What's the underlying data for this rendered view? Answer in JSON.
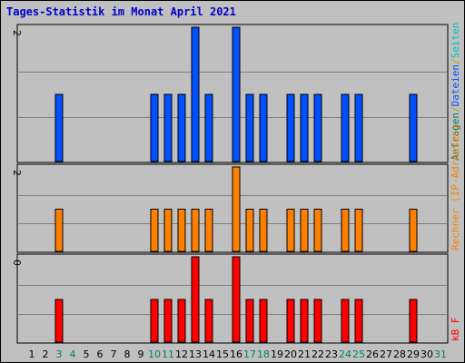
{
  "title": "Tages-Statistik im Monat April 2021",
  "colors": {
    "title": "#0000cc",
    "grid": "#808080",
    "frame": "#000000",
    "day_normal": "#000000",
    "day_weekend": "#008060"
  },
  "chart_data": [
    {
      "type": "bar",
      "panel": "top",
      "categories": [
        "1",
        "2",
        "3",
        "4",
        "5",
        "6",
        "7",
        "8",
        "9",
        "10",
        "11",
        "12",
        "13",
        "14",
        "15",
        "16",
        "17",
        "18",
        "19",
        "20",
        "21",
        "22",
        "23",
        "24",
        "25",
        "26",
        "27",
        "28",
        "29",
        "30",
        "31"
      ],
      "ylim": [
        0,
        2
      ],
      "ymax_label": "2",
      "color": "#0050ff",
      "legend": [
        {
          "text": "Anfragen",
          "color": "#008060"
        },
        {
          "text": "/",
          "color": "#c0a000"
        },
        {
          "text": "Dateien",
          "color": "#0050ff"
        },
        {
          "text": "/",
          "color": "#c0a000"
        },
        {
          "text": "Seiten",
          "color": "#00c0c0"
        }
      ],
      "values": [
        0,
        0,
        1,
        0,
        0,
        0,
        0,
        0,
        0,
        1,
        1,
        1,
        2,
        1,
        0,
        2,
        1,
        1,
        0,
        1,
        1,
        1,
        0,
        1,
        1,
        0,
        0,
        0,
        1,
        0,
        0
      ]
    },
    {
      "type": "bar",
      "panel": "middle",
      "categories": [
        "1",
        "2",
        "3",
        "4",
        "5",
        "6",
        "7",
        "8",
        "9",
        "10",
        "11",
        "12",
        "13",
        "14",
        "15",
        "16",
        "17",
        "18",
        "19",
        "20",
        "21",
        "22",
        "23",
        "24",
        "25",
        "26",
        "27",
        "28",
        "29",
        "30",
        "31"
      ],
      "ylim": [
        0,
        2
      ],
      "ymax_label": "2",
      "color": "#ff8000",
      "legend": [
        {
          "text": "Rechner (IP-Adressen)",
          "color": "#ff8000"
        }
      ],
      "values": [
        0,
        0,
        1,
        0,
        0,
        0,
        0,
        0,
        0,
        1,
        1,
        1,
        1,
        1,
        0,
        2,
        1,
        1,
        0,
        1,
        1,
        1,
        0,
        1,
        1,
        0,
        0,
        0,
        1,
        0,
        0
      ]
    },
    {
      "type": "bar",
      "panel": "bottom",
      "categories": [
        "1",
        "2",
        "3",
        "4",
        "5",
        "6",
        "7",
        "8",
        "9",
        "10",
        "11",
        "12",
        "13",
        "14",
        "15",
        "16",
        "17",
        "18",
        "19",
        "20",
        "21",
        "22",
        "23",
        "24",
        "25",
        "26",
        "27",
        "28",
        "29",
        "30",
        "31"
      ],
      "ylim": [
        0,
        2
      ],
      "ymax_label": "0",
      "color": "#ff0000",
      "legend": [
        {
          "text": "kB F",
          "color": "#ff0000"
        }
      ],
      "values": [
        0,
        0,
        1,
        0,
        0,
        0,
        0,
        0,
        0,
        1,
        1,
        1,
        2,
        1,
        0,
        2,
        1,
        1,
        0,
        1,
        1,
        1,
        0,
        1,
        1,
        0,
        0,
        0,
        1,
        0,
        0
      ]
    }
  ],
  "x_axis": {
    "labels": [
      "1",
      "2",
      "3",
      "4",
      "5",
      "6",
      "7",
      "8",
      "9",
      "10",
      "11",
      "12",
      "13",
      "14",
      "15",
      "16",
      "17",
      "18",
      "19",
      "20",
      "21",
      "22",
      "23",
      "24",
      "25",
      "26",
      "27",
      "28",
      "29",
      "30",
      "31"
    ],
    "weekend_days": [
      "3",
      "4",
      "10",
      "11",
      "17",
      "18",
      "24",
      "25",
      "31"
    ]
  }
}
